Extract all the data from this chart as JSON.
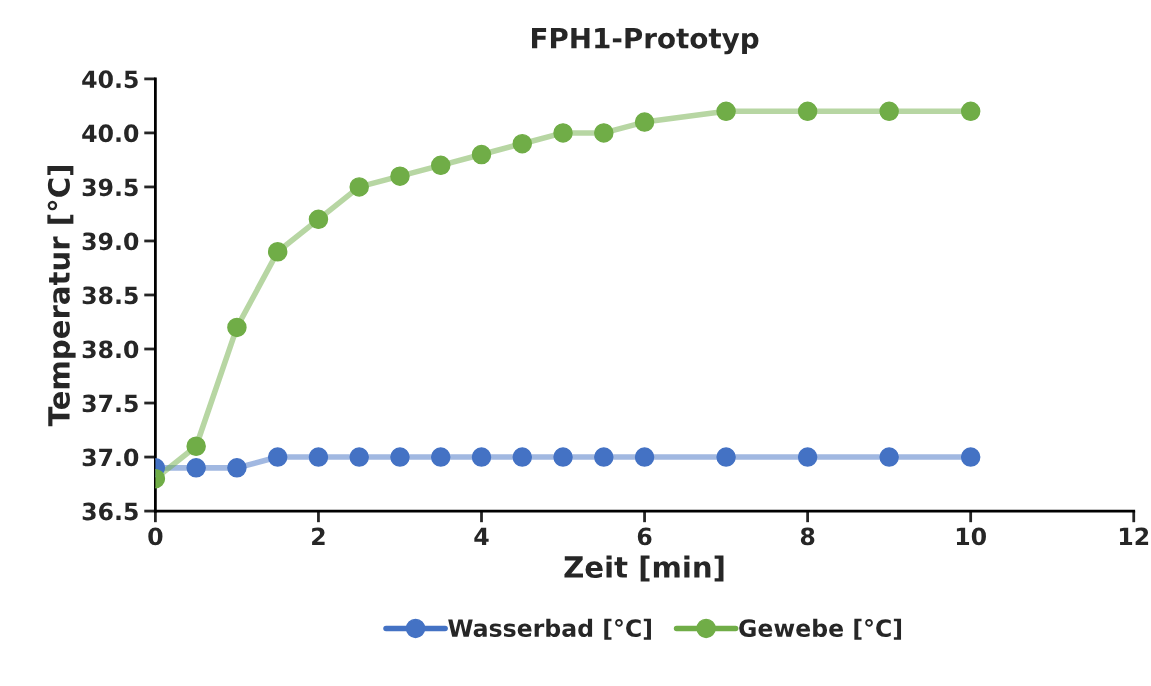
{
  "chart_data": {
    "type": "line",
    "title": "FPH1-Prototyp",
    "xlabel": "Zeit [min]",
    "ylabel": "Temperatur [°C]",
    "x": [
      0,
      0.5,
      1,
      1.5,
      2,
      2.5,
      3,
      3.5,
      4,
      4.5,
      5,
      5.5,
      6,
      7,
      8,
      9,
      10
    ],
    "series": [
      {
        "name": "Wasserbad [°C]",
        "color": "#4472c4",
        "values": [
          36.9,
          36.9,
          36.9,
          37.0,
          37.0,
          37.0,
          37.0,
          37.0,
          37.0,
          37.0,
          37.0,
          37.0,
          37.0,
          37.0,
          37.0,
          37.0,
          37.0
        ]
      },
      {
        "name": "Gewebe [°C]",
        "color": "#70ad47",
        "values": [
          36.8,
          37.1,
          38.2,
          38.9,
          39.2,
          39.5,
          39.6,
          39.7,
          39.8,
          39.9,
          40.0,
          40.0,
          40.1,
          40.2,
          40.2,
          40.2,
          40.2
        ]
      }
    ],
    "xlim": [
      0,
      12
    ],
    "xticks": [
      0,
      2,
      4,
      6,
      8,
      10,
      12
    ],
    "ylim": [
      36.5,
      40.5
    ],
    "yticks": [
      {
        "value": 36.5,
        "label": "36.5"
      },
      {
        "value": 37.0,
        "label": "37.0"
      },
      {
        "value": 37.5,
        "label": "37.5"
      },
      {
        "value": 38.0,
        "label": "38.0"
      },
      {
        "value": 38.5,
        "label": "38.5"
      },
      {
        "value": 39.0,
        "label": "39.0"
      },
      {
        "value": 39.5,
        "label": "39.5"
      },
      {
        "value": 40.0,
        "label": "40.0"
      },
      {
        "value": 40.5,
        "label": "40.5"
      }
    ],
    "grid": false,
    "legend": "bottom",
    "marker": "circle",
    "line_style": "solid"
  }
}
